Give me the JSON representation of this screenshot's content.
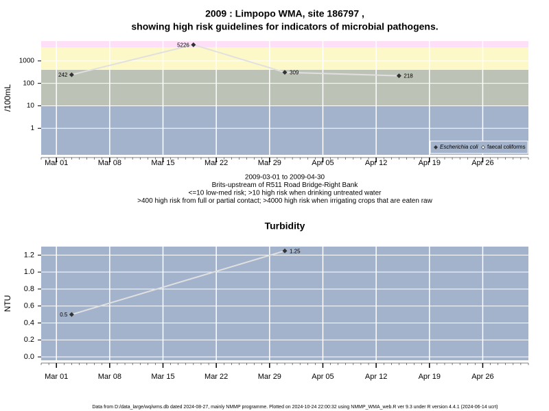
{
  "chart_data": [
    {
      "type": "line",
      "title": [
        "2009 : Limpopo WMA, site 186797 ,",
        "showing high risk guidelines for indicators of microbial pathogens."
      ],
      "y_label": "/100mL",
      "log_scale": true,
      "x": [
        "2009-03-03",
        "2009-03-19",
        "2009-03-31",
        "2009-04-15"
      ],
      "series": [
        {
          "name": "Escherichia coli",
          "color": "#333333",
          "values": [
            242,
            5226,
            309,
            218
          ]
        },
        {
          "name": "faecal coliforms",
          "color": "#333333",
          "values": [
            null,
            null,
            null,
            null
          ]
        }
      ],
      "xlim": [
        "2009-02-27",
        "2009-05-02"
      ],
      "xticks": [
        {
          "value": "2009-03-01",
          "label": "Mar 01"
        },
        {
          "value": "2009-03-08",
          "label": "Mar 08"
        },
        {
          "value": "2009-03-15",
          "label": "Mar 15"
        },
        {
          "value": "2009-03-22",
          "label": "Mar 22"
        },
        {
          "value": "2009-03-29",
          "label": "Mar 29"
        },
        {
          "value": "2009-04-05",
          "label": "Apr 05"
        },
        {
          "value": "2009-04-12",
          "label": "Apr 12"
        },
        {
          "value": "2009-04-19",
          "label": "Apr 19"
        },
        {
          "value": "2009-04-26",
          "label": "Apr 26"
        }
      ],
      "ylim": [
        0.066,
        7600
      ],
      "yticks": [
        1,
        10,
        100,
        1000
      ],
      "grid": true,
      "legend": "lower right",
      "bands": [
        {
          "upper": 10,
          "color": "#a3b3cc"
        },
        {
          "upper": 400,
          "color": "#bcc3b6"
        },
        {
          "upper": 4000,
          "color": "#fdf8c8"
        },
        {
          "upper": null,
          "color": "#fde0f8"
        }
      ],
      "annotations": [
        "2009-03-01 to 2009-04-30",
        "Brits-upstream of R511 Road Bridge-Right Bank",
        "<=10 low-med risk; >10 high risk when drinking untreated water",
        ">400 high risk from full or partial contact; >4000 high risk when irrigating crops that are eaten raw"
      ]
    },
    {
      "type": "line",
      "title": [
        "Turbidity"
      ],
      "y_label": "NTU",
      "log_scale": false,
      "x": [
        "2009-03-03",
        "2009-03-31"
      ],
      "series": [
        {
          "name": "Turbidity",
          "color": "#333333",
          "values": [
            0.5,
            1.25
          ]
        }
      ],
      "xlim": [
        "2009-02-27",
        "2009-05-02"
      ],
      "xticks": [
        {
          "value": "2009-03-01",
          "label": "Mar 01"
        },
        {
          "value": "2009-03-08",
          "label": "Mar 08"
        },
        {
          "value": "2009-03-15",
          "label": "Mar 15"
        },
        {
          "value": "2009-03-22",
          "label": "Mar 22"
        },
        {
          "value": "2009-03-29",
          "label": "Mar 29"
        },
        {
          "value": "2009-04-05",
          "label": "Apr 05"
        },
        {
          "value": "2009-04-12",
          "label": "Apr 12"
        },
        {
          "value": "2009-04-19",
          "label": "Apr 19"
        },
        {
          "value": "2009-04-26",
          "label": "Apr 26"
        }
      ],
      "ylim": [
        -0.04,
        1.3
      ],
      "yticks": [
        {
          "value": 0,
          "label": "0.0"
        },
        0.2,
        0.4,
        0.6,
        0.8,
        {
          "value": 1,
          "label": "1.0"
        },
        1.2
      ],
      "grid": true,
      "background": "#a3b3cc"
    }
  ],
  "footer": "Data from D:/data_large/wq/wms.db dated 2024-08-27, mainly NMMP programme. Plotted on 2024-10-24 22:00:32 using NMMP_WMA_web.R ver 9.3 under R version 4.4.1 (2024-06-14 ucrt)"
}
